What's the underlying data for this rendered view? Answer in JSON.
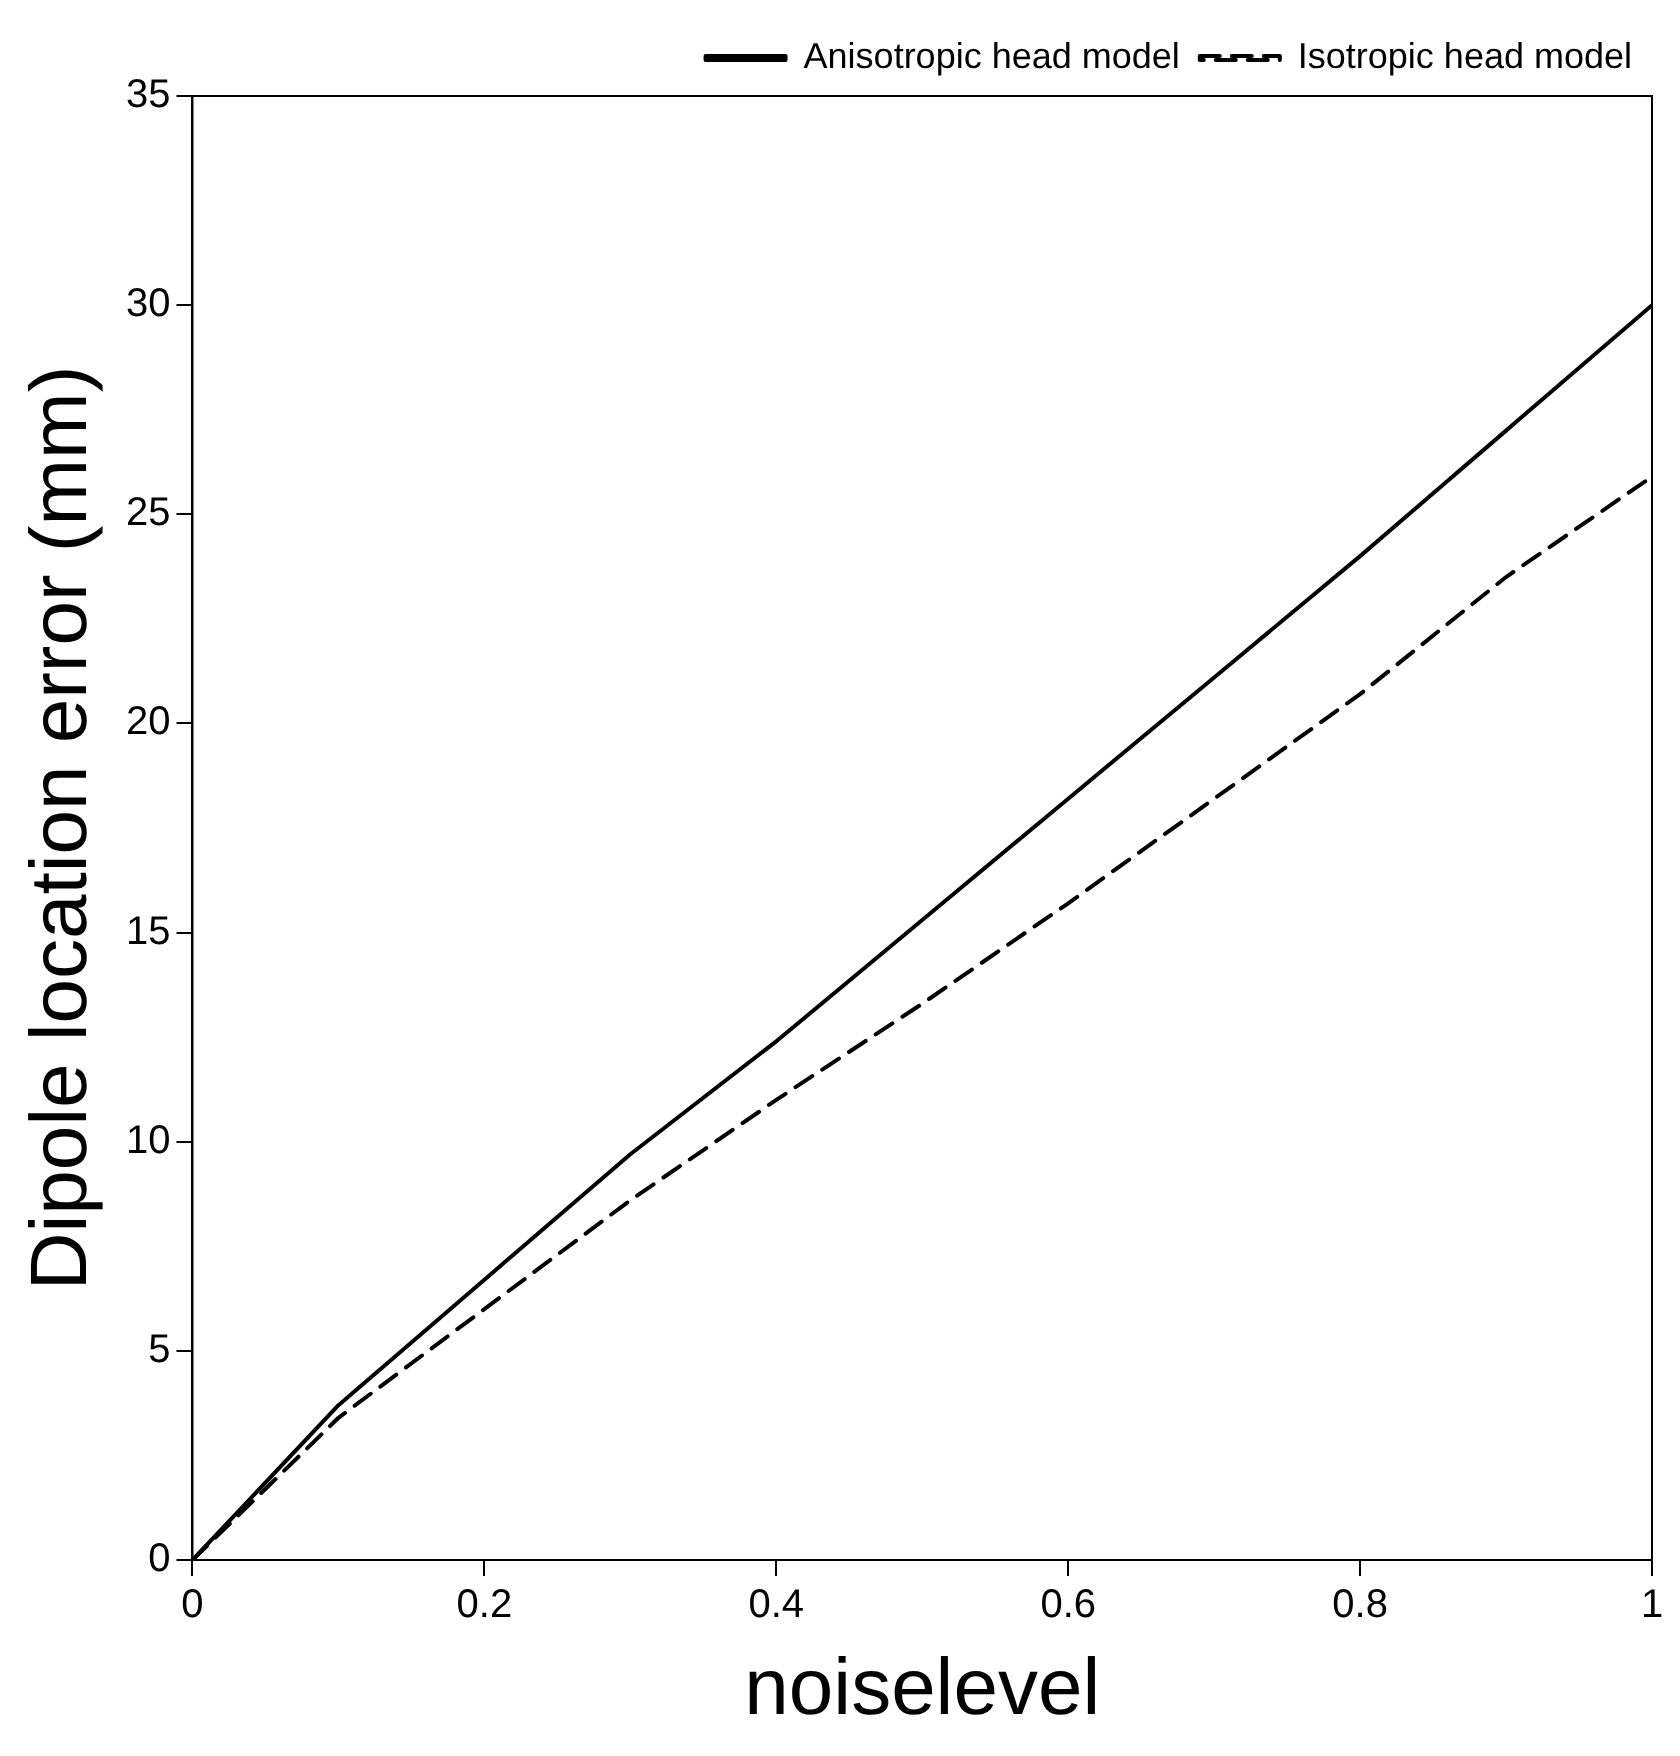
{
  "chart_data": {
    "type": "line",
    "xlabel": "noiselevel",
    "ylabel": "Dipole location error (mm)",
    "x": [
      0,
      0.1,
      0.2,
      0.3,
      0.4,
      0.5,
      0.6,
      0.7,
      0.8,
      0.9,
      1
    ],
    "series": [
      {
        "name": "Anisotropic head model",
        "color": "#000000",
        "line_style": "solid",
        "values": [
          0,
          3.7,
          6.7,
          9.7,
          12.4,
          15.3,
          18.2,
          21.1,
          24.0,
          27.0,
          30.0
        ]
      },
      {
        "name": "Isotropic head model",
        "color": "#000000",
        "line_style": "dashed",
        "values": [
          0,
          3.4,
          6.0,
          8.6,
          11.0,
          13.3,
          15.7,
          18.2,
          20.7,
          23.5,
          25.9
        ]
      }
    ],
    "xlim": [
      0,
      1
    ],
    "xticks": [
      0,
      0.2,
      0.4,
      0.6,
      0.8,
      1
    ],
    "ylim": [
      0,
      35
    ],
    "yticks": [
      0,
      5,
      10,
      15,
      20,
      25,
      30,
      35
    ],
    "grid": false,
    "legend": "top right",
    "marker": "none"
  }
}
